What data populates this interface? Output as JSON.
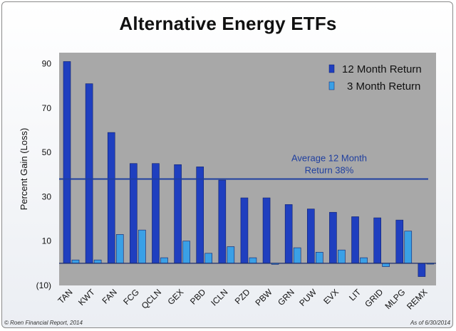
{
  "footer": {
    "left": "© Roen Financial Report, 2014",
    "right": "As of 6/30/2014"
  },
  "colors": {
    "plot_background": "#a8a8a8",
    "series_12m": "#1f3fbf",
    "series_3m": "#3aa0e6",
    "average_line": "#1f3f9f",
    "annotation_text": "#1f3f9f"
  },
  "chart_data": {
    "type": "bar",
    "title": "Alternative Energy ETFs",
    "ylabel": "Percent Gain (Loss)",
    "xlabel": "",
    "ylim": [
      -10,
      95
    ],
    "yticks": [
      -10,
      10,
      30,
      50,
      70,
      90
    ],
    "ytick_labels": [
      "(10)",
      "10",
      "30",
      "50",
      "70",
      "90"
    ],
    "grid": false,
    "legend": "top-right",
    "categories": [
      "TAN",
      "KWT",
      "FAN",
      "FCG",
      "QCLN",
      "GEX",
      "PBD",
      "ICLN",
      "PZD",
      "PBW",
      "GRN",
      "PUW",
      "EVX",
      "LIT",
      "GRID",
      "MLPG",
      "REMX"
    ],
    "series": [
      {
        "name": "12 Month Return",
        "values": [
          91,
          81,
          59,
          45,
          45,
          44.5,
          43.5,
          37.5,
          29.5,
          29.5,
          26.5,
          24.5,
          23,
          21,
          20.5,
          19.5,
          -6
        ]
      },
      {
        "name": "3 Month Return",
        "values": [
          1.5,
          1.5,
          13,
          15,
          2.5,
          10,
          4.5,
          7.5,
          2.5,
          -0.5,
          7,
          5,
          6,
          2.5,
          -1.5,
          14.5,
          0
        ]
      }
    ],
    "annotations": [
      {
        "text": "Average 12 Month Return 38%",
        "lines": [
          "Average 12 Month",
          "Return 38%"
        ],
        "y": 38
      }
    ]
  }
}
